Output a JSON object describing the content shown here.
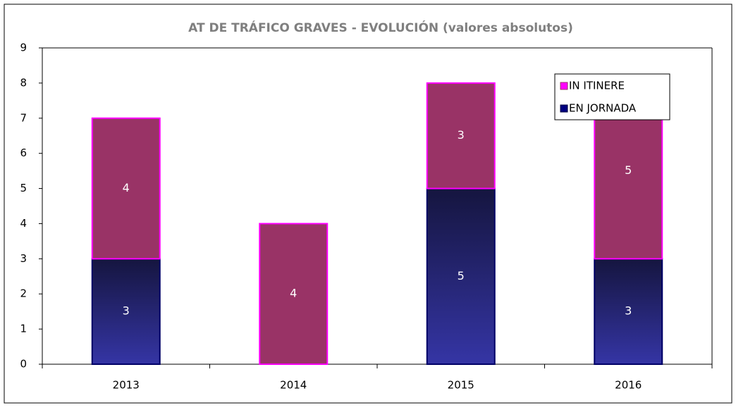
{
  "chart_data": {
    "type": "stacked_bar",
    "title": "AT DE TRÁFICO GRAVES - EVOLUCIÓN (valores absolutos)",
    "categories": [
      "2013",
      "2014",
      "2015",
      "2016"
    ],
    "series": [
      {
        "name": "EN JORNADA",
        "color": "#2e2e96",
        "values": [
          3,
          0,
          5,
          3
        ]
      },
      {
        "name": "IN ITINERE",
        "color": "#993366",
        "values": [
          4,
          4,
          3,
          5
        ]
      }
    ],
    "ylim": [
      0,
      9
    ],
    "yticks": [
      0,
      1,
      2,
      3,
      4,
      5,
      6,
      7,
      8,
      9
    ],
    "legend": "upper right"
  }
}
